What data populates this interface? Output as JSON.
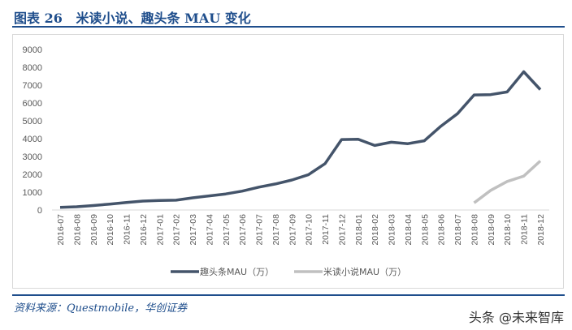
{
  "header": {
    "title": "图表 26   米读小说、趣头条 MAU 变化"
  },
  "footer": {
    "source": "资料来源：Questmobile，华创证券",
    "watermark": "头条 @未来智库"
  },
  "chart_data": {
    "type": "line",
    "categories": [
      "2016-07",
      "2016-08",
      "2016-09",
      "2016-10",
      "2016-11",
      "2016-12",
      "2017-01",
      "2017-02",
      "2017-03",
      "2017-04",
      "2017-05",
      "2017-06",
      "2017-07",
      "2017-08",
      "2017-09",
      "2017-10",
      "2017-11",
      "2017-12",
      "2018-01",
      "2018-02",
      "2018-03",
      "2018-04",
      "2018-05",
      "2018-06",
      "2018-07",
      "2018-08",
      "2018-09",
      "2018-10",
      "2018-11",
      "2018-12"
    ],
    "series": [
      {
        "name": "趣头条MAU（万）",
        "color": "#44546a",
        "values": [
          150,
          180,
          250,
          330,
          420,
          500,
          530,
          550,
          680,
          790,
          900,
          1060,
          1280,
          1460,
          1680,
          1980,
          2600,
          3950,
          3970,
          3620,
          3800,
          3720,
          3880,
          4700,
          5400,
          6450,
          6470,
          6620,
          7750,
          6750
        ]
      },
      {
        "name": "米读小说MAU（万）",
        "color": "#c0c0c0",
        "values": [
          null,
          null,
          null,
          null,
          null,
          null,
          null,
          null,
          null,
          null,
          null,
          null,
          null,
          null,
          null,
          null,
          null,
          null,
          null,
          null,
          null,
          null,
          null,
          null,
          null,
          400,
          1100,
          1600,
          1900,
          2750
        ]
      }
    ],
    "yticks": [
      0,
      1000,
      2000,
      3000,
      4000,
      5000,
      6000,
      7000,
      8000,
      9000
    ],
    "ylim": [
      0,
      9000
    ],
    "grid": false,
    "legend": "bottom"
  }
}
